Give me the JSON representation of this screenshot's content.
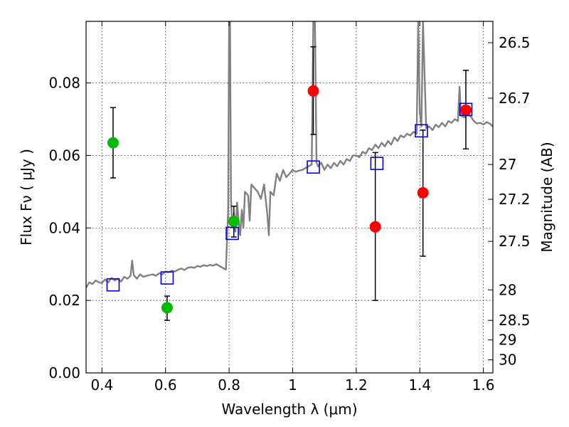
{
  "chart_data": {
    "type": "scatter",
    "title": "",
    "xlabel": "Wavelength  λ (μm)",
    "ylabel": "Flux  Fν  ( μJy )",
    "ylabel_right": "Magnitude (AB)",
    "xlim": [
      0.35,
      1.63
    ],
    "ylim": [
      0.0,
      0.097
    ],
    "grid": true,
    "x_ticks": [
      0.4,
      0.6,
      0.8,
      1.0,
      1.2,
      1.4,
      1.6
    ],
    "x_tick_labels": [
      "0.4",
      "0.6",
      "0.8",
      "1",
      "1.2",
      "1.4",
      "1.6"
    ],
    "y_ticks": [
      0.0,
      0.02,
      0.04,
      0.06,
      0.08
    ],
    "y_tick_labels": [
      "0.00",
      "0.02",
      "0.04",
      "0.06",
      "0.08"
    ],
    "right_ticks": [
      {
        "label": "26.5",
        "flux": 0.0911
      },
      {
        "label": "26.7",
        "flux": 0.0758
      },
      {
        "label": "27",
        "flux": 0.0575
      },
      {
        "label": "27.2",
        "flux": 0.0479
      },
      {
        "label": "27.5",
        "flux": 0.0363
      },
      {
        "label": "28",
        "flux": 0.0229
      },
      {
        "label": "28.5",
        "flux": 0.0145
      },
      {
        "label": "29",
        "flux": 0.0091
      },
      {
        "label": "30",
        "flux": 0.0036
      }
    ],
    "colors": {
      "green": "#00bb00",
      "red": "#ff0000",
      "blue": "#0000dd",
      "spectrum": "#808080"
    },
    "spectrum": {
      "x": [
        0.35,
        0.36,
        0.37,
        0.38,
        0.39,
        0.4,
        0.41,
        0.42,
        0.43,
        0.44,
        0.45,
        0.46,
        0.47,
        0.48,
        0.49,
        0.495,
        0.5,
        0.51,
        0.52,
        0.53,
        0.54,
        0.55,
        0.56,
        0.57,
        0.58,
        0.59,
        0.6,
        0.61,
        0.62,
        0.63,
        0.64,
        0.65,
        0.66,
        0.67,
        0.68,
        0.69,
        0.7,
        0.71,
        0.72,
        0.73,
        0.74,
        0.75,
        0.76,
        0.77,
        0.78,
        0.79,
        0.797,
        0.8,
        0.803,
        0.806,
        0.81,
        0.815,
        0.82,
        0.825,
        0.83,
        0.835,
        0.84,
        0.845,
        0.85,
        0.86,
        0.865,
        0.87,
        0.88,
        0.89,
        0.9,
        0.91,
        0.92,
        0.925,
        0.93,
        0.94,
        0.95,
        0.96,
        0.97,
        0.98,
        0.99,
        1.0,
        1.01,
        1.02,
        1.03,
        1.04,
        1.05,
        1.06,
        1.065,
        1.07,
        1.075,
        1.08,
        1.09,
        1.1,
        1.11,
        1.12,
        1.13,
        1.14,
        1.15,
        1.16,
        1.17,
        1.18,
        1.19,
        1.2,
        1.21,
        1.22,
        1.23,
        1.24,
        1.25,
        1.26,
        1.27,
        1.28,
        1.29,
        1.3,
        1.31,
        1.32,
        1.33,
        1.34,
        1.35,
        1.36,
        1.37,
        1.38,
        1.39,
        1.395,
        1.4,
        1.405,
        1.41,
        1.42,
        1.43,
        1.44,
        1.45,
        1.46,
        1.47,
        1.48,
        1.49,
        1.5,
        1.51,
        1.52,
        1.525,
        1.53,
        1.54,
        1.55,
        1.56,
        1.57,
        1.58,
        1.59,
        1.6,
        1.61,
        1.62,
        1.63
      ],
      "y": [
        0.0235,
        0.025,
        0.0245,
        0.0255,
        0.025,
        0.0248,
        0.0258,
        0.025,
        0.0262,
        0.0255,
        0.026,
        0.0252,
        0.0265,
        0.026,
        0.0268,
        0.031,
        0.027,
        0.026,
        0.0272,
        0.0265,
        0.0268,
        0.027,
        0.0272,
        0.0268,
        0.0275,
        0.0272,
        0.028,
        0.0278,
        0.0282,
        0.028,
        0.0285,
        0.0288,
        0.0284,
        0.029,
        0.0292,
        0.029,
        0.0295,
        0.0293,
        0.0297,
        0.0295,
        0.0298,
        0.0296,
        0.03,
        0.0295,
        0.029,
        0.0285,
        0.045,
        0.097,
        0.097,
        0.048,
        0.04,
        0.044,
        0.039,
        0.047,
        0.042,
        0.038,
        0.045,
        0.04,
        0.05,
        0.049,
        0.042,
        0.052,
        0.051,
        0.05,
        0.048,
        0.052,
        0.044,
        0.038,
        0.05,
        0.049,
        0.055,
        0.053,
        0.056,
        0.054,
        0.055,
        0.056,
        0.0555,
        0.0558,
        0.056,
        0.0565,
        0.057,
        0.0575,
        0.097,
        0.097,
        0.058,
        0.057,
        0.058,
        0.056,
        0.0575,
        0.0565,
        0.058,
        0.057,
        0.0585,
        0.0575,
        0.059,
        0.0585,
        0.06,
        0.06,
        0.0595,
        0.061,
        0.0605,
        0.062,
        0.0615,
        0.063,
        0.062,
        0.0635,
        0.0625,
        0.064,
        0.063,
        0.065,
        0.064,
        0.0655,
        0.065,
        0.066,
        0.0655,
        0.0665,
        0.066,
        0.097,
        0.072,
        0.068,
        0.097,
        0.0675,
        0.068,
        0.067,
        0.0685,
        0.0678,
        0.069,
        0.068,
        0.0695,
        0.069,
        0.07,
        0.0695,
        0.079,
        0.071,
        0.0705,
        0.0712,
        0.0708,
        0.0695,
        0.0688,
        0.069,
        0.0685,
        0.0692,
        0.0688,
        0.068
      ]
    },
    "series": [
      {
        "marker": "circle",
        "color": "green",
        "points": [
          {
            "x": 0.435,
            "y": 0.0635,
            "err_low": 0.0538,
            "err_high": 0.0732
          },
          {
            "x": 0.605,
            "y": 0.018,
            "err_low": 0.0145,
            "err_high": 0.0212
          },
          {
            "x": 0.815,
            "y": 0.0418,
            "err_low": 0.0375,
            "err_high": 0.046
          }
        ]
      },
      {
        "marker": "circle",
        "color": "red",
        "points": [
          {
            "x": 1.065,
            "y": 0.0778,
            "err_low": 0.0658,
            "err_high": 0.09
          },
          {
            "x": 1.26,
            "y": 0.0403,
            "err_low": 0.02,
            "err_high": 0.0608
          },
          {
            "x": 1.41,
            "y": 0.0497,
            "err_low": 0.0322,
            "err_high": 0.067
          },
          {
            "x": 1.545,
            "y": 0.0725,
            "err_low": 0.0618,
            "err_high": 0.0835
          }
        ]
      },
      {
        "marker": "square",
        "color": "blue",
        "points": [
          {
            "x": 0.435,
            "y": 0.0243
          },
          {
            "x": 0.605,
            "y": 0.0262
          },
          {
            "x": 0.81,
            "y": 0.0385
          },
          {
            "x": 1.065,
            "y": 0.0568
          },
          {
            "x": 1.265,
            "y": 0.0578
          },
          {
            "x": 1.405,
            "y": 0.0668
          },
          {
            "x": 1.545,
            "y": 0.0727
          }
        ]
      }
    ]
  }
}
